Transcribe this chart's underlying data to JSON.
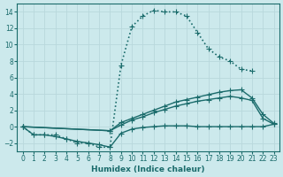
{
  "xlabel": "Humidex (Indice chaleur)",
  "xlim": [
    -0.5,
    23.5
  ],
  "ylim": [
    -3,
    15
  ],
  "bg_color": "#cce9ec",
  "grid_color": "#b8d8dc",
  "line_color": "#1a6b6b",
  "series": [
    {
      "x": [
        0,
        1,
        2,
        3,
        4,
        5,
        6,
        7,
        8,
        9,
        10,
        11,
        12,
        13,
        14,
        15,
        16,
        17,
        18,
        19,
        20,
        21
      ],
      "y": [
        0,
        -1,
        -1,
        -1,
        -1.5,
        -2,
        -2,
        -2.5,
        -2.5,
        7.5,
        12.2,
        13.5,
        14.2,
        14.0,
        14.0,
        13.5,
        11.5,
        9.5,
        8.5,
        8.0,
        7.0,
        6.8
      ],
      "linestyle": "dotted",
      "linewidth": 1.2,
      "marker": "+",
      "markersize": 5
    },
    {
      "x": [
        0,
        8,
        9,
        10,
        11,
        12,
        13,
        14,
        15,
        16,
        17,
        18,
        19,
        20,
        21,
        22,
        23
      ],
      "y": [
        0,
        -0.5,
        0.5,
        1.0,
        1.5,
        2.0,
        2.5,
        3.0,
        3.3,
        3.6,
        3.9,
        4.2,
        4.4,
        4.5,
        3.5,
        1.5,
        0.4
      ],
      "linestyle": "solid",
      "linewidth": 1.0,
      "marker": "+",
      "markersize": 5
    },
    {
      "x": [
        0,
        8,
        9,
        10,
        11,
        12,
        13,
        14,
        15,
        16,
        17,
        18,
        19,
        20,
        21,
        22,
        23
      ],
      "y": [
        0,
        -0.5,
        0.2,
        0.8,
        1.2,
        1.7,
        2.1,
        2.5,
        2.8,
        3.1,
        3.3,
        3.5,
        3.7,
        3.5,
        3.2,
        1.0,
        0.3
      ],
      "linestyle": "solid",
      "linewidth": 1.0,
      "marker": "+",
      "markersize": 5
    },
    {
      "x": [
        0,
        1,
        2,
        3,
        4,
        5,
        6,
        7,
        8,
        9,
        10,
        11,
        12,
        13,
        14,
        15,
        16,
        17,
        18,
        19,
        20,
        21,
        22,
        23
      ],
      "y": [
        0,
        -1,
        -1,
        -1.2,
        -1.5,
        -1.8,
        -2,
        -2.2,
        -2.5,
        -0.8,
        -0.3,
        -0.1,
        0.0,
        0.1,
        0.1,
        0.1,
        0.0,
        0.0,
        0.0,
        0.0,
        0.0,
        0.0,
        0.0,
        0.3
      ],
      "linestyle": "solid",
      "linewidth": 1.0,
      "marker": "+",
      "markersize": 5
    }
  ],
  "xticks": [
    0,
    1,
    2,
    3,
    4,
    5,
    6,
    7,
    8,
    9,
    10,
    11,
    12,
    13,
    14,
    15,
    16,
    17,
    18,
    19,
    20,
    21,
    22,
    23
  ],
  "yticks": [
    -2,
    0,
    2,
    4,
    6,
    8,
    10,
    12,
    14
  ]
}
